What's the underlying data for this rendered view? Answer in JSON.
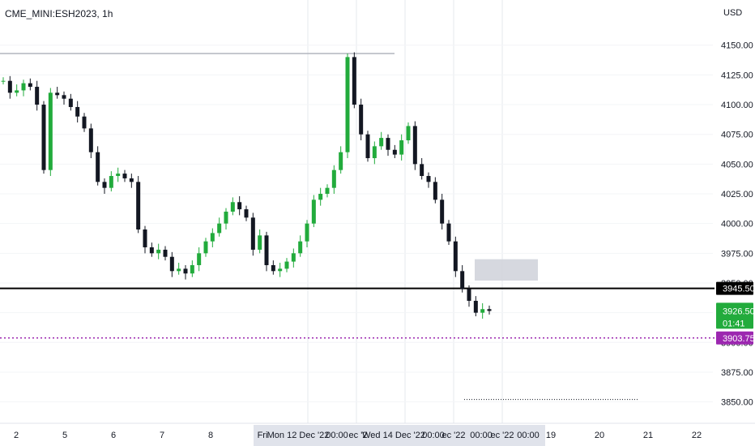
{
  "symbol_title": "CME_MINI:ESH2023, 1h",
  "currency": "USD",
  "colors": {
    "up": "#089981",
    "down": "#131722",
    "up_candle": "#22ab3c",
    "support_line": "#000000",
    "purple": "#9c27b0",
    "price_badge": "#22ab3c",
    "range_box": "#d1d4dc",
    "axis_band": "#e0e3eb"
  },
  "chart_data": {
    "type": "line",
    "title": "CME_MINI:ESH2023, 1h",
    "ylabel": "USD",
    "ylim": [
      3832,
      4188
    ],
    "y_ticks": [
      4150,
      4125,
      4100,
      4075,
      4050,
      4025,
      4000,
      3975,
      3950,
      3925,
      3900,
      3875,
      3850
    ],
    "x_tick_labels": [
      "2",
      "5",
      "6",
      "7",
      "8",
      "Fri",
      "Mon 12 Dec '22",
      "00:00",
      "ec '2",
      "Wed 14 Dec '22",
      "00:00",
      "ec '22",
      "00:00",
      "ec '22",
      "00:00",
      "19",
      "20",
      "21",
      "22"
    ],
    "series": [
      {
        "values": [
          4120,
          4110,
          4112,
          4118,
          4115,
          4100,
          4045,
          4110,
          4108,
          4105,
          4098,
          4090,
          4080,
          4060,
          4035,
          4030,
          4040,
          4042,
          4038,
          4035,
          3995,
          3980,
          3975,
          3978,
          3972,
          3960,
          3962,
          3958,
          3965,
          3975,
          3985,
          3992,
          4000,
          4010,
          4018,
          4012,
          4005,
          3978,
          3990,
          3965,
          3960,
          3962,
          3968,
          3975,
          3985,
          4000,
          4020,
          4025,
          4030,
          4045,
          4060,
          4140,
          4100,
          4075,
          4055,
          4065,
          4072,
          4062,
          4058,
          4070,
          4082,
          4050,
          4040,
          4035,
          4020,
          4000,
          3985,
          3960,
          3945,
          3935,
          3925,
          3928,
          3926.5
        ]
      }
    ],
    "support_level": 3945.5,
    "current_price": 3926.5,
    "countdown": "01:41",
    "purple_level": 3903.75,
    "resistance_level": 4143,
    "range_box": [
      3952,
      3970
    ],
    "dotted_level": 3852
  },
  "badges": {
    "support": "3945.50",
    "current": "3926.50",
    "countdown": "01:41",
    "purple": "3903.75",
    "partial_top": "3950.00"
  }
}
